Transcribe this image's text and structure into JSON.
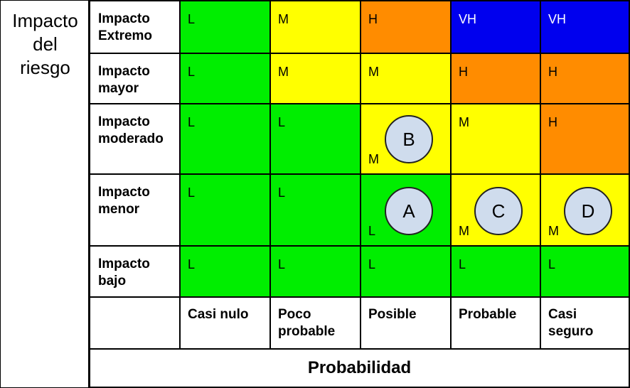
{
  "side_title": [
    "Impacto",
    "del",
    "riesgo"
  ],
  "row_labels": [
    [
      "Impacto",
      "Extremo"
    ],
    [
      "Impacto",
      "mayor"
    ],
    [
      "Impacto",
      "moderado"
    ],
    [
      "Impacto",
      "menor"
    ],
    [
      "Impacto",
      "bajo"
    ]
  ],
  "col_labels": [
    [
      "Casi nulo"
    ],
    [
      "Poco",
      "probable"
    ],
    [
      "Posible"
    ],
    [
      "Probable"
    ],
    [
      "Casi",
      "seguro"
    ]
  ],
  "x_axis_label": "Probabilidad",
  "level_colors": {
    "L": "#00ee00",
    "M": "#ffff00",
    "H": "#ff8c00",
    "VH": "#0000ee"
  },
  "matrix": [
    [
      "L",
      "M",
      "H",
      "VH",
      "VH"
    ],
    [
      "L",
      "M",
      "M",
      "H",
      "H"
    ],
    [
      "L",
      "L",
      "M",
      "M",
      "H"
    ],
    [
      "L",
      "L",
      "L",
      "M",
      "M"
    ],
    [
      "L",
      "L",
      "L",
      "L",
      "L"
    ]
  ],
  "markers": [
    {
      "label": "B",
      "row": 2,
      "col": 2
    },
    {
      "label": "A",
      "row": 3,
      "col": 2
    },
    {
      "label": "C",
      "row": 3,
      "col": 3
    },
    {
      "label": "D",
      "row": 3,
      "col": 4
    }
  ]
}
